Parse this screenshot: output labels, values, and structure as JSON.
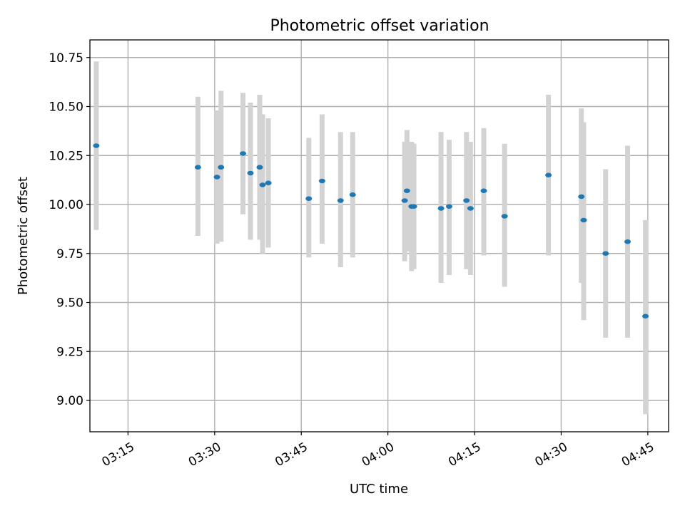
{
  "chart_data": {
    "type": "scatter",
    "title": "Photometric offset variation",
    "xlabel": "UTC time",
    "ylabel": "Photometric offset",
    "xlim": [
      3.14,
      4.81
    ],
    "ylim": [
      8.84,
      10.84
    ],
    "grid": true,
    "x_ticks": [
      {
        "value": 3.25,
        "label": "03:15"
      },
      {
        "value": 3.5,
        "label": "03:30"
      },
      {
        "value": 3.75,
        "label": "03:45"
      },
      {
        "value": 4.0,
        "label": "04:00"
      },
      {
        "value": 4.25,
        "label": "04:15"
      },
      {
        "value": 4.5,
        "label": "04:30"
      },
      {
        "value": 4.75,
        "label": "04:45"
      }
    ],
    "y_ticks": [
      {
        "value": 9.0,
        "label": "9.00"
      },
      {
        "value": 9.25,
        "label": "9.25"
      },
      {
        "value": 9.5,
        "label": "9.50"
      },
      {
        "value": 9.75,
        "label": "9.75"
      },
      {
        "value": 10.0,
        "label": "10.00"
      },
      {
        "value": 10.25,
        "label": "10.25"
      },
      {
        "value": 10.5,
        "label": "10.50"
      },
      {
        "value": 10.75,
        "label": "10.75"
      }
    ],
    "series": [
      {
        "name": "Photometric offset",
        "color": "#1f77b4",
        "errorbar_color": "#d3d3d3",
        "points": [
          {
            "x": 3.1583,
            "y": 10.3,
            "lo": 9.87,
            "hi": 10.73
          },
          {
            "x": 3.4517,
            "y": 10.19,
            "lo": 9.84,
            "hi": 10.55
          },
          {
            "x": 3.5067,
            "y": 10.14,
            "lo": 9.8,
            "hi": 10.48
          },
          {
            "x": 3.5183,
            "y": 10.19,
            "lo": 9.81,
            "hi": 10.58
          },
          {
            "x": 3.5817,
            "y": 10.26,
            "lo": 9.95,
            "hi": 10.57
          },
          {
            "x": 3.6033,
            "y": 10.16,
            "lo": 9.82,
            "hi": 10.52
          },
          {
            "x": 3.63,
            "y": 10.19,
            "lo": 9.82,
            "hi": 10.56
          },
          {
            "x": 3.6383,
            "y": 10.1,
            "lo": 9.75,
            "hi": 10.46
          },
          {
            "x": 3.655,
            "y": 10.11,
            "lo": 9.78,
            "hi": 10.44
          },
          {
            "x": 3.7717,
            "y": 10.03,
            "lo": 9.73,
            "hi": 10.34
          },
          {
            "x": 3.81,
            "y": 10.12,
            "lo": 9.8,
            "hi": 10.46
          },
          {
            "x": 3.8633,
            "y": 10.02,
            "lo": 9.68,
            "hi": 10.37
          },
          {
            "x": 3.8983,
            "y": 10.05,
            "lo": 9.73,
            "hi": 10.37
          },
          {
            "x": 4.0483,
            "y": 10.02,
            "lo": 9.71,
            "hi": 10.32
          },
          {
            "x": 4.055,
            "y": 10.07,
            "lo": 9.76,
            "hi": 10.38
          },
          {
            "x": 4.0683,
            "y": 9.99,
            "lo": 9.66,
            "hi": 10.32
          },
          {
            "x": 4.075,
            "y": 9.99,
            "lo": 9.67,
            "hi": 10.31
          },
          {
            "x": 4.1533,
            "y": 9.98,
            "lo": 9.6,
            "hi": 10.37
          },
          {
            "x": 4.1767,
            "y": 9.99,
            "lo": 9.64,
            "hi": 10.33
          },
          {
            "x": 4.2267,
            "y": 10.02,
            "lo": 9.67,
            "hi": 10.37
          },
          {
            "x": 4.2383,
            "y": 9.98,
            "lo": 9.64,
            "hi": 10.32
          },
          {
            "x": 4.2767,
            "y": 10.07,
            "lo": 9.74,
            "hi": 10.39
          },
          {
            "x": 4.3367,
            "y": 9.94,
            "lo": 9.58,
            "hi": 10.31
          },
          {
            "x": 4.4633,
            "y": 10.15,
            "lo": 9.74,
            "hi": 10.56
          },
          {
            "x": 4.5583,
            "y": 10.04,
            "lo": 9.6,
            "hi": 10.49
          },
          {
            "x": 4.565,
            "y": 9.92,
            "lo": 9.41,
            "hi": 10.42
          },
          {
            "x": 4.6283,
            "y": 9.75,
            "lo": 9.32,
            "hi": 10.18
          },
          {
            "x": 4.6917,
            "y": 9.81,
            "lo": 9.32,
            "hi": 10.3
          },
          {
            "x": 4.7433,
            "y": 9.43,
            "lo": 8.93,
            "hi": 9.92
          }
        ]
      }
    ]
  }
}
